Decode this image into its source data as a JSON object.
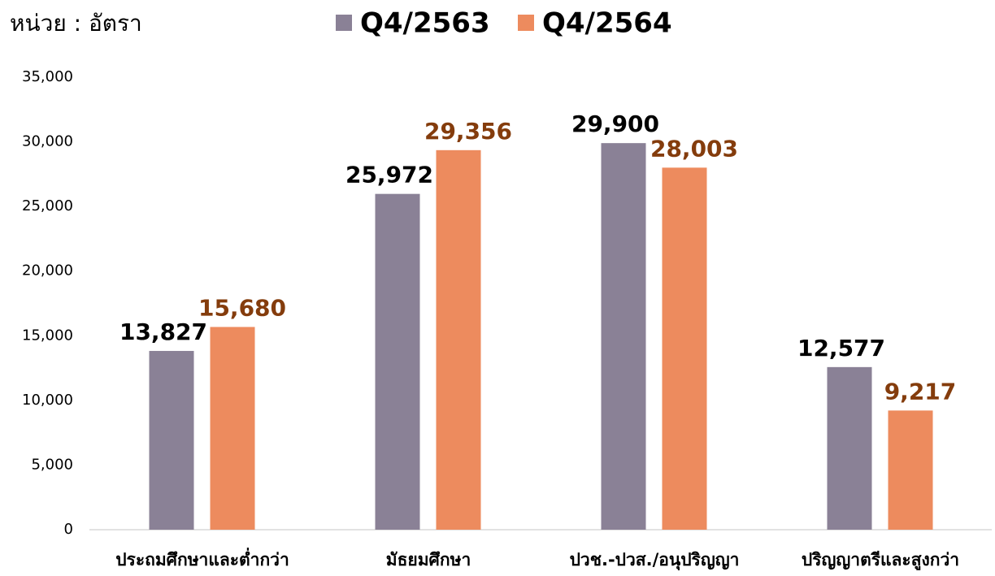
{
  "chart_data": {
    "type": "bar",
    "unit_label": "หน่วย : อัตรา",
    "categories": [
      "ประถมศึกษาและต่ำกว่า",
      "มัธยมศึกษา",
      "ปวช.-ปวส./อนุปริญญา",
      "ปริญญาตรีและสูงกว่า"
    ],
    "series": [
      {
        "name": "Q4/2563",
        "color": "#8a8196",
        "label_color": "#000000",
        "values": [
          13827,
          25972,
          29900,
          12577
        ],
        "value_labels": [
          "13,827",
          "25,972",
          "29,900",
          "12,577"
        ]
      },
      {
        "name": "Q4/2564",
        "color": "#ed8b5e",
        "label_color": "#843c0c",
        "values": [
          15680,
          29356,
          28003,
          9217
        ],
        "value_labels": [
          "15,680",
          "29,356",
          "28,003",
          "9,217"
        ]
      }
    ],
    "ylim": [
      0,
      35000
    ],
    "yticks": [
      0,
      {
        "value": 5000,
        "label": "5,000"
      },
      {
        "value": 10000,
        "label": "10,000"
      },
      {
        "value": 15000,
        "label": "15,000"
      },
      {
        "value": 20000,
        "label": "20,000"
      },
      {
        "value": 25000,
        "label": "25,000"
      },
      {
        "value": 30000,
        "label": "30,000"
      },
      {
        "value": 35000,
        "label": "35,000"
      }
    ],
    "grid": false,
    "legend": "top"
  }
}
